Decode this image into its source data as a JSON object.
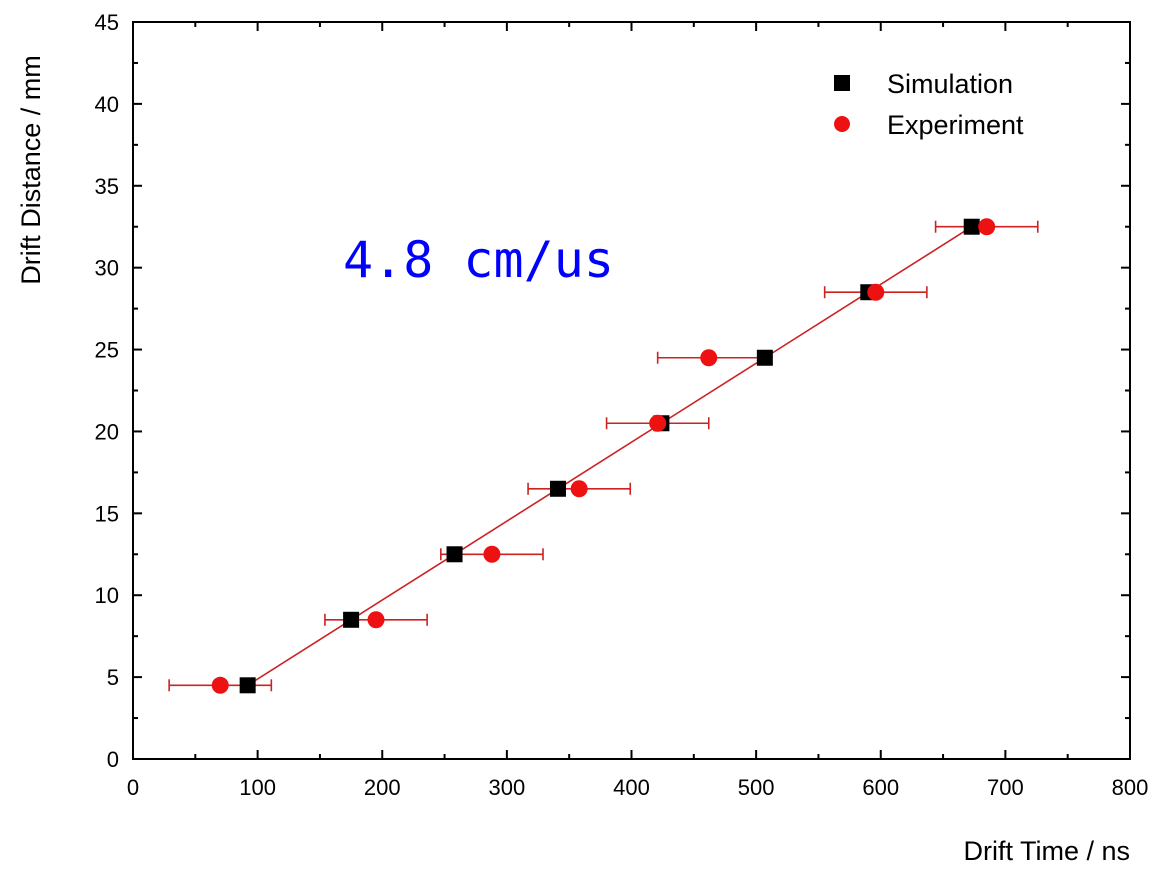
{
  "chart_data": {
    "type": "scatter",
    "xlabel": "Drift Time / ns",
    "ylabel": "Drift Distance / mm",
    "xlim": [
      0,
      800
    ],
    "ylim": [
      0,
      45
    ],
    "xticks": [
      0,
      100,
      200,
      300,
      400,
      500,
      600,
      700,
      800
    ],
    "yticks": [
      0,
      5,
      10,
      15,
      20,
      25,
      30,
      35,
      40,
      45
    ],
    "grid": false,
    "legend_position": "top-right",
    "annotation": {
      "text": "4.8 cm/us",
      "color": "#0000ff"
    },
    "series": [
      {
        "name": "Simulation",
        "marker": "square",
        "color": "#000000",
        "connected": true,
        "line_color": "#cc2222",
        "points": [
          {
            "x": 92,
            "y": 4.5
          },
          {
            "x": 175,
            "y": 8.5
          },
          {
            "x": 258,
            "y": 12.5
          },
          {
            "x": 341,
            "y": 16.5
          },
          {
            "x": 424,
            "y": 20.5
          },
          {
            "x": 507,
            "y": 24.5
          },
          {
            "x": 590,
            "y": 28.5
          },
          {
            "x": 673,
            "y": 32.5
          }
        ]
      },
      {
        "name": "Experiment",
        "marker": "circle",
        "color": "#ee1111",
        "error_color": "#cc2222",
        "points": [
          {
            "x": 70,
            "y": 4.5,
            "xerr_low": 29,
            "xerr_high": 111
          },
          {
            "x": 195,
            "y": 8.5,
            "xerr_low": 154,
            "xerr_high": 236
          },
          {
            "x": 288,
            "y": 12.5,
            "xerr_low": 247,
            "xerr_high": 329
          },
          {
            "x": 358,
            "y": 16.5,
            "xerr_low": 317,
            "xerr_high": 399
          },
          {
            "x": 421,
            "y": 20.5,
            "xerr_low": 380,
            "xerr_high": 462
          },
          {
            "x": 462,
            "y": 24.5,
            "xerr_low": 421,
            "xerr_high": 503
          },
          {
            "x": 596,
            "y": 28.5,
            "xerr_low": 555,
            "xerr_high": 637
          },
          {
            "x": 685,
            "y": 32.5,
            "xerr_low": 644,
            "xerr_high": 726
          }
        ]
      }
    ]
  }
}
